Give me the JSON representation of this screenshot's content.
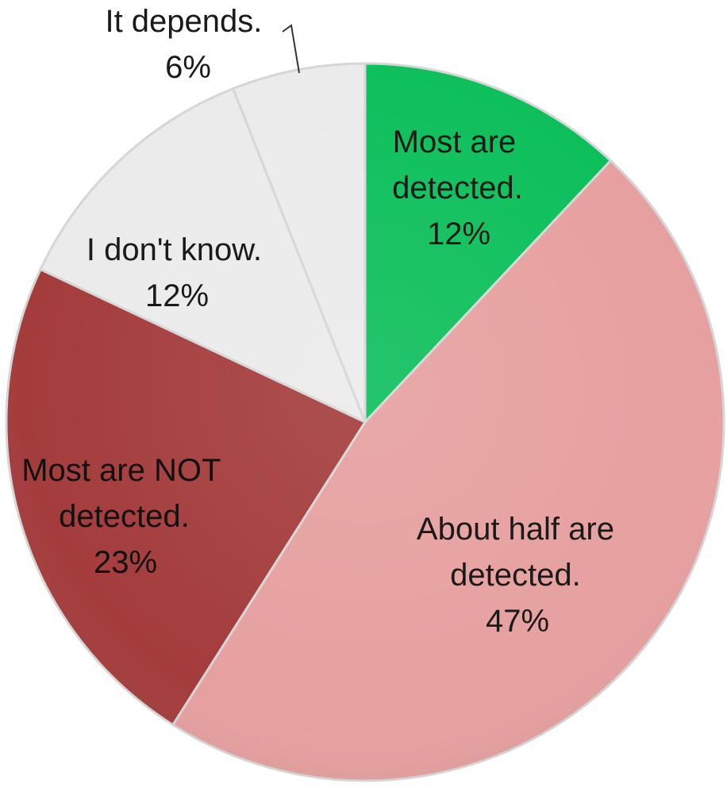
{
  "chart_data": {
    "type": "pie",
    "title": "",
    "start_angle_deg": 0,
    "direction": "clockwise",
    "slices": [
      {
        "label_lines": [
          "Most are",
          "detected."
        ],
        "value_label": "12%",
        "value": 12,
        "color": "#0cbf5a"
      },
      {
        "label_lines": [
          "About half are",
          "detected."
        ],
        "value_label": "47%",
        "value": 47,
        "color": "#e6a09f"
      },
      {
        "label_lines": [
          "Most are NOT",
          "detected."
        ],
        "value_label": "23%",
        "value": 23,
        "color": "#a43c3c"
      },
      {
        "label_lines": [
          "I don't know."
        ],
        "value_label": "12%",
        "value": 12,
        "color": "#ebebeb"
      },
      {
        "label_lines": [
          "It depends."
        ],
        "value_label": "6%",
        "value": 6,
        "color": "#ebebeb"
      }
    ]
  }
}
